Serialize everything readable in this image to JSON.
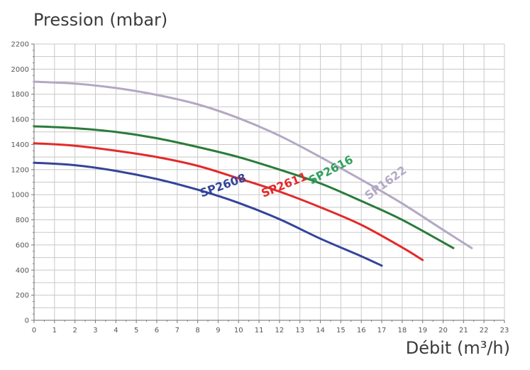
{
  "chart_data": {
    "type": "line",
    "ylabel": "Pression (mbar)",
    "xlabel": "Débit (m³/h)",
    "xlim": [
      0,
      23
    ],
    "ylim": [
      0,
      2200
    ],
    "xticks": [
      0,
      1,
      2,
      3,
      4,
      5,
      6,
      7,
      8,
      9,
      10,
      11,
      12,
      13,
      14,
      15,
      16,
      17,
      18,
      19,
      20,
      21,
      22,
      23
    ],
    "yticks": [
      0,
      200,
      400,
      600,
      800,
      1000,
      1200,
      1400,
      1600,
      1800,
      2000,
      2200
    ],
    "grid": true,
    "series": [
      {
        "name": "SP2608",
        "color": "#34449a",
        "x": [
          0,
          2,
          4,
          6,
          8,
          10,
          12,
          14,
          16,
          17
        ],
        "y": [
          1255,
          1235,
          1190,
          1125,
          1040,
          935,
          805,
          650,
          510,
          435
        ]
      },
      {
        "name": "SP2611",
        "color": "#e32a2a",
        "x": [
          0,
          2,
          4,
          6,
          8,
          10,
          12,
          14,
          16,
          18,
          19
        ],
        "y": [
          1410,
          1390,
          1350,
          1300,
          1230,
          1130,
          1025,
          900,
          760,
          580,
          480
        ]
      },
      {
        "name": "SP2616",
        "color": "#2a7b3a",
        "x": [
          0,
          2,
          4,
          6,
          8,
          10,
          12,
          14,
          16,
          18,
          20.5
        ],
        "y": [
          1545,
          1530,
          1500,
          1450,
          1380,
          1300,
          1200,
          1090,
          950,
          800,
          575
        ]
      },
      {
        "name": "SP1622",
        "color": "#b3a8c4",
        "x": [
          0,
          2,
          4,
          6,
          8,
          10,
          12,
          14,
          16,
          18,
          20,
          21.4
        ],
        "y": [
          1900,
          1885,
          1850,
          1795,
          1720,
          1610,
          1470,
          1300,
          1120,
          930,
          720,
          575
        ]
      }
    ],
    "labels": [
      {
        "text": "SP2608",
        "x": 9.3,
        "y": 1045,
        "angle": -20,
        "color": "#34449a"
      },
      {
        "text": "SP2611",
        "x": 12.3,
        "y": 1050,
        "angle": -22,
        "color": "#e32a2a"
      },
      {
        "text": "SP2616",
        "x": 14.6,
        "y": 1170,
        "angle": -28,
        "color": "#2fa05a"
      },
      {
        "text": "SP1622",
        "x": 17.3,
        "y": 1070,
        "angle": -36,
        "color": "#b3a8c4"
      }
    ]
  }
}
